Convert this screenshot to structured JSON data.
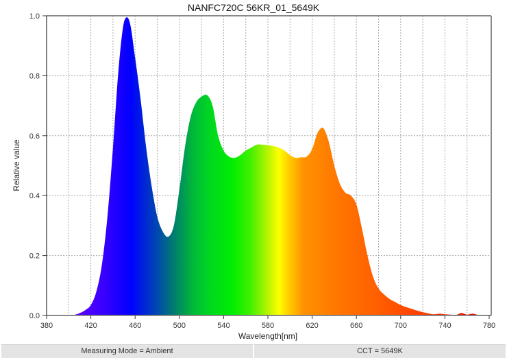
{
  "title": "NANFC720C 56KR_01_5649K",
  "status_bar": {
    "left": "Measuring Mode = Ambient",
    "right": "CCT = 5649K"
  },
  "chart_data": {
    "type": "area",
    "title": "NANFC720C 56KR_01_5649K",
    "xlabel": "Wavelength[nm]",
    "ylabel": "Relative value",
    "xlim": [
      380,
      780
    ],
    "ylim": [
      0,
      1.0
    ],
    "xticks": [
      380,
      420,
      460,
      500,
      540,
      580,
      620,
      660,
      700,
      740,
      780
    ],
    "yticks": [
      0.0,
      0.2,
      0.4,
      0.6,
      0.8,
      1.0
    ],
    "ytick_labels": [
      "0.0",
      "0.2",
      "0.4",
      "0.6",
      "0.8",
      "1.0"
    ],
    "grid": true,
    "fill": "spectral-gradient",
    "x": [
      380,
      385,
      390,
      395,
      400,
      405,
      410,
      415,
      420,
      425,
      430,
      435,
      440,
      445,
      450,
      455,
      460,
      465,
      470,
      475,
      480,
      485,
      490,
      495,
      500,
      505,
      510,
      515,
      520,
      525,
      530,
      535,
      540,
      545,
      550,
      555,
      560,
      565,
      570,
      575,
      580,
      585,
      590,
      595,
      600,
      605,
      610,
      615,
      620,
      625,
      630,
      635,
      640,
      645,
      650,
      655,
      660,
      665,
      670,
      675,
      680,
      685,
      690,
      695,
      700,
      705,
      710,
      715,
      720,
      725,
      730,
      735,
      740,
      745,
      750,
      755,
      760,
      765,
      770,
      775,
      780
    ],
    "values": [
      0,
      0,
      0,
      0,
      0,
      0.002,
      0.008,
      0.018,
      0.035,
      0.08,
      0.17,
      0.33,
      0.56,
      0.82,
      0.98,
      0.98,
      0.86,
      0.72,
      0.56,
      0.43,
      0.33,
      0.28,
      0.263,
      0.3,
      0.42,
      0.56,
      0.66,
      0.71,
      0.73,
      0.735,
      0.7,
      0.6,
      0.55,
      0.53,
      0.526,
      0.535,
      0.55,
      0.56,
      0.57,
      0.57,
      0.568,
      0.565,
      0.56,
      0.55,
      0.535,
      0.526,
      0.528,
      0.53,
      0.555,
      0.61,
      0.625,
      0.58,
      0.5,
      0.44,
      0.41,
      0.4,
      0.37,
      0.29,
      0.2,
      0.13,
      0.09,
      0.07,
      0.055,
      0.045,
      0.035,
      0.028,
      0.022,
      0.016,
      0.011,
      0.007,
      0.004,
      0.006,
      0.004,
      0.003,
      0.002,
      0.008,
      0.003,
      0.006,
      0.002,
      0.001,
      0.0
    ]
  }
}
